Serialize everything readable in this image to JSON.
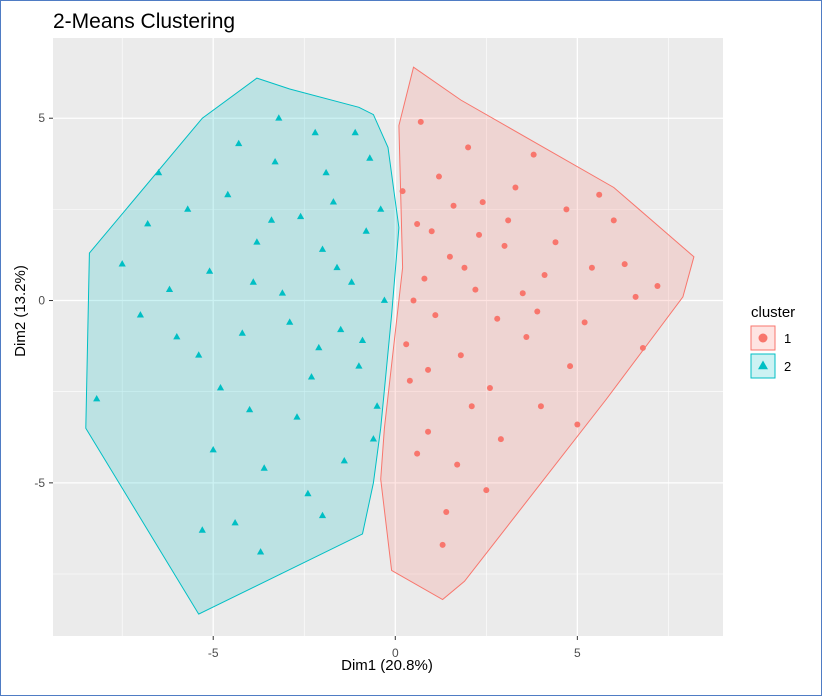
{
  "chart_data": {
    "type": "scatter",
    "title": "2-Means Clustering",
    "xlabel": "Dim1 (20.8%)",
    "ylabel": "Dim2 (13.2%)",
    "xlim": [
      -9.4,
      9.0
    ],
    "ylim": [
      -9.2,
      7.2
    ],
    "x_ticks": [
      -5,
      0,
      5
    ],
    "y_ticks": [
      -5,
      0,
      5
    ],
    "grid": true,
    "legend": {
      "title": "cluster",
      "position": "right"
    },
    "series": [
      {
        "name": "1",
        "marker": "circle",
        "color": "#F8766D",
        "hull": [
          [
            0.5,
            6.4
          ],
          [
            1.8,
            5.5
          ],
          [
            6.0,
            3.1
          ],
          [
            8.2,
            1.2
          ],
          [
            7.9,
            0.1
          ],
          [
            5.8,
            -2.7
          ],
          [
            1.9,
            -7.7
          ],
          [
            1.3,
            -8.2
          ],
          [
            -0.1,
            -7.4
          ],
          [
            -0.4,
            -4.9
          ],
          [
            -0.3,
            -3.5
          ],
          [
            0.2,
            0.9
          ],
          [
            0.1,
            4.8
          ]
        ],
        "points": [
          [
            0.8,
            0.6
          ],
          [
            1.1,
            -0.4
          ],
          [
            1.5,
            1.2
          ],
          [
            0.6,
            2.1
          ],
          [
            2.2,
            0.3
          ],
          [
            1.8,
            -1.5
          ],
          [
            3.0,
            1.5
          ],
          [
            2.6,
            -2.4
          ],
          [
            4.1,
            0.7
          ],
          [
            3.6,
            -1.0
          ],
          [
            0.4,
            -2.2
          ],
          [
            1.2,
            3.4
          ],
          [
            2.0,
            4.2
          ],
          [
            0.9,
            -3.6
          ],
          [
            1.7,
            -4.5
          ],
          [
            3.3,
            3.1
          ],
          [
            4.7,
            2.5
          ],
          [
            5.2,
            -0.6
          ],
          [
            6.3,
            1.0
          ],
          [
            5.6,
            2.9
          ],
          [
            6.8,
            -1.3
          ],
          [
            7.2,
            0.4
          ],
          [
            2.9,
            -3.8
          ],
          [
            4.0,
            -2.9
          ],
          [
            1.4,
            -5.8
          ],
          [
            0.7,
            4.9
          ],
          [
            3.8,
            4.0
          ],
          [
            5.0,
            -3.4
          ],
          [
            2.4,
            2.7
          ],
          [
            0.5,
            0.0
          ],
          [
            1.0,
            1.9
          ],
          [
            1.9,
            0.9
          ],
          [
            2.8,
            -0.5
          ],
          [
            3.5,
            0.2
          ],
          [
            0.3,
            -1.2
          ],
          [
            4.4,
            1.6
          ],
          [
            6.0,
            2.2
          ],
          [
            4.8,
            -1.8
          ],
          [
            2.1,
            -2.9
          ],
          [
            0.6,
            -4.2
          ],
          [
            3.1,
            2.2
          ],
          [
            5.4,
            0.9
          ],
          [
            6.6,
            0.1
          ],
          [
            1.3,
            -6.7
          ],
          [
            2.5,
            -5.2
          ],
          [
            0.2,
            3.0
          ],
          [
            1.6,
            2.6
          ],
          [
            0.9,
            -1.9
          ],
          [
            2.3,
            1.8
          ],
          [
            3.9,
            -0.3
          ]
        ]
      },
      {
        "name": "2",
        "marker": "triangle",
        "color": "#00BFC4",
        "hull": [
          [
            -3.8,
            6.1
          ],
          [
            -2.9,
            5.8
          ],
          [
            -1.0,
            5.3
          ],
          [
            -0.6,
            5.1
          ],
          [
            -0.2,
            4.2
          ],
          [
            0.1,
            2.0
          ],
          [
            -0.1,
            -0.4
          ],
          [
            -0.4,
            -3.5
          ],
          [
            -0.6,
            -5.0
          ],
          [
            -0.9,
            -6.4
          ],
          [
            -5.4,
            -8.6
          ],
          [
            -8.5,
            -3.5
          ],
          [
            -8.4,
            1.3
          ],
          [
            -5.3,
            5.0
          ]
        ],
        "points": [
          [
            -1.2,
            0.5
          ],
          [
            -2.0,
            1.4
          ],
          [
            -1.5,
            -0.8
          ],
          [
            -3.1,
            0.2
          ],
          [
            -2.6,
            2.3
          ],
          [
            -0.8,
            1.9
          ],
          [
            -3.8,
            1.6
          ],
          [
            -4.2,
            -0.9
          ],
          [
            -2.3,
            -2.1
          ],
          [
            -1.0,
            -1.8
          ],
          [
            -5.1,
            0.8
          ],
          [
            -4.6,
            2.9
          ],
          [
            -3.3,
            3.8
          ],
          [
            -1.9,
            3.5
          ],
          [
            -0.7,
            3.9
          ],
          [
            -2.7,
            -3.2
          ],
          [
            -4.0,
            -3.0
          ],
          [
            -5.4,
            -1.5
          ],
          [
            -6.2,
            0.3
          ],
          [
            -6.8,
            2.1
          ],
          [
            -1.4,
            -4.4
          ],
          [
            -3.6,
            -4.6
          ],
          [
            -5.0,
            -4.1
          ],
          [
            -7.5,
            1.0
          ],
          [
            -8.2,
            -2.7
          ],
          [
            -2.2,
            4.6
          ],
          [
            -0.5,
            -2.9
          ],
          [
            -0.3,
            0.0
          ],
          [
            -1.7,
            2.7
          ],
          [
            -2.9,
            -0.6
          ],
          [
            -3.9,
            0.5
          ],
          [
            -4.8,
            -2.4
          ],
          [
            -6.0,
            -1.0
          ],
          [
            -5.7,
            2.5
          ],
          [
            -3.2,
            5.0
          ],
          [
            -1.1,
            4.6
          ],
          [
            -0.4,
            2.5
          ],
          [
            -2.4,
            -5.3
          ],
          [
            -4.4,
            -6.1
          ],
          [
            -5.3,
            -6.3
          ],
          [
            -3.7,
            -6.9
          ],
          [
            -2.0,
            -5.9
          ],
          [
            -7.0,
            -0.4
          ],
          [
            -6.5,
            3.5
          ],
          [
            -4.3,
            4.3
          ],
          [
            -0.9,
            -1.1
          ],
          [
            -1.6,
            0.9
          ],
          [
            -2.1,
            -1.3
          ],
          [
            -3.4,
            2.2
          ],
          [
            -0.6,
            -3.8
          ]
        ]
      }
    ]
  }
}
